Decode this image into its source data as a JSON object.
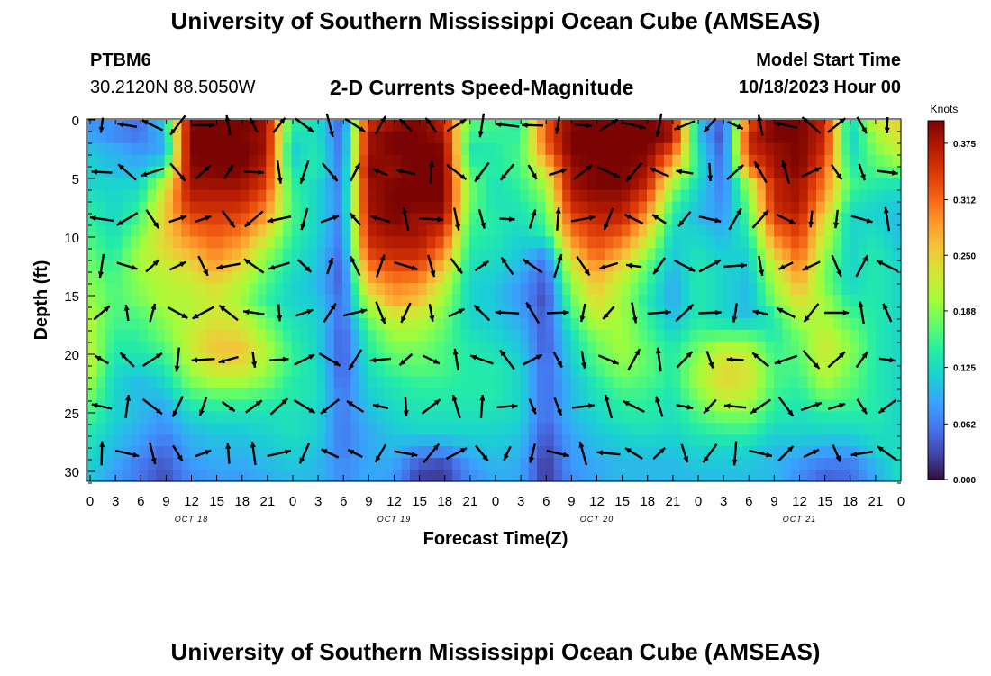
{
  "header": {
    "title": "University of Southern Mississippi Ocean Cube (AMSEAS)",
    "station": "PTBM6",
    "coords": "30.2120N  88.5050W",
    "chart_title": "2-D Currents Speed-Magnitude",
    "model_label": "Model Start Time",
    "model_date": "10/18/2023 Hour 00"
  },
  "footer": {
    "title": "University of Southern Mississippi Ocean Cube (AMSEAS)"
  },
  "chart_data": {
    "type": "heatmap",
    "title": "2-D Currents Speed-Magnitude",
    "xlabel": "Forecast Time(Z)",
    "ylabel": "Depth (ft)",
    "x_tick_labels": [
      "0",
      "3",
      "6",
      "9",
      "12",
      "15",
      "18",
      "21",
      "0",
      "3",
      "6",
      "9",
      "12",
      "15",
      "18",
      "21",
      "0",
      "3",
      "6",
      "9",
      "12",
      "15",
      "18",
      "21",
      "0",
      "3",
      "6",
      "9",
      "12",
      "15",
      "18",
      "21",
      "0"
    ],
    "date_labels": [
      {
        "label": "OCT 18",
        "hour": 12
      },
      {
        "label": "OCT 19",
        "hour": 36
      },
      {
        "label": "OCT 20",
        "hour": 60
      },
      {
        "label": "OCT 21",
        "hour": 84
      }
    ],
    "x_range_hours": [
      0,
      96
    ],
    "y_range_ft": [
      0,
      31
    ],
    "y_ticks": [
      0,
      5,
      10,
      15,
      20,
      25,
      30
    ],
    "colorbar": {
      "label": "Knots",
      "range": [
        0,
        0.4
      ],
      "ticks": [
        "0.375",
        "0.312",
        "0.250",
        "0.188",
        "0.125",
        "0.062",
        "0.000"
      ]
    },
    "colors": [
      "#30123b",
      "#4145ab",
      "#4675ed",
      "#39a2fc",
      "#1bcfd4",
      "#24eca6",
      "#61fc6c",
      "#a4fc3b",
      "#d1e834",
      "#f3c63a",
      "#fe9b2d",
      "#f36315",
      "#d93806",
      "#b11901",
      "#7a0403"
    ],
    "speed_knots": [
      [
        0.07,
        0.08,
        0.05,
        0.12,
        0.39,
        0.41,
        0.41,
        0.38,
        0.15,
        0.13,
        0.04,
        0.34,
        0.38,
        0.4,
        0.36,
        0.17,
        0.16,
        0.14,
        0.32,
        0.39,
        0.41,
        0.4,
        0.4,
        0.37,
        0.12,
        0.04,
        0.32,
        0.4,
        0.4,
        0.36,
        0.12,
        0.23,
        0.25
      ],
      [
        0.09,
        0.07,
        0.06,
        0.1,
        0.4,
        0.41,
        0.4,
        0.38,
        0.13,
        0.13,
        0.05,
        0.38,
        0.4,
        0.4,
        0.38,
        0.15,
        0.15,
        0.15,
        0.32,
        0.4,
        0.41,
        0.41,
        0.41,
        0.38,
        0.11,
        0.03,
        0.36,
        0.4,
        0.4,
        0.36,
        0.11,
        0.2,
        0.24
      ],
      [
        0.11,
        0.1,
        0.08,
        0.09,
        0.4,
        0.42,
        0.41,
        0.38,
        0.11,
        0.14,
        0.05,
        0.38,
        0.4,
        0.41,
        0.4,
        0.13,
        0.14,
        0.16,
        0.3,
        0.4,
        0.41,
        0.41,
        0.4,
        0.32,
        0.13,
        0.04,
        0.35,
        0.38,
        0.4,
        0.35,
        0.12,
        0.18,
        0.22
      ],
      [
        0.12,
        0.1,
        0.1,
        0.15,
        0.39,
        0.4,
        0.4,
        0.36,
        0.13,
        0.14,
        0.06,
        0.4,
        0.38,
        0.41,
        0.4,
        0.16,
        0.14,
        0.16,
        0.24,
        0.38,
        0.4,
        0.4,
        0.38,
        0.26,
        0.14,
        0.05,
        0.3,
        0.38,
        0.4,
        0.32,
        0.14,
        0.16,
        0.18
      ],
      [
        0.12,
        0.12,
        0.12,
        0.22,
        0.38,
        0.38,
        0.38,
        0.34,
        0.15,
        0.12,
        0.06,
        0.38,
        0.4,
        0.4,
        0.4,
        0.18,
        0.13,
        0.15,
        0.2,
        0.38,
        0.4,
        0.4,
        0.36,
        0.2,
        0.12,
        0.06,
        0.2,
        0.36,
        0.38,
        0.3,
        0.16,
        0.14,
        0.13
      ],
      [
        0.14,
        0.12,
        0.14,
        0.25,
        0.36,
        0.36,
        0.36,
        0.31,
        0.16,
        0.12,
        0.07,
        0.38,
        0.4,
        0.4,
        0.4,
        0.18,
        0.13,
        0.14,
        0.18,
        0.36,
        0.38,
        0.38,
        0.32,
        0.16,
        0.11,
        0.07,
        0.18,
        0.36,
        0.38,
        0.28,
        0.14,
        0.12,
        0.11
      ],
      [
        0.15,
        0.12,
        0.16,
        0.25,
        0.33,
        0.34,
        0.33,
        0.28,
        0.16,
        0.12,
        0.06,
        0.37,
        0.4,
        0.38,
        0.38,
        0.16,
        0.14,
        0.13,
        0.16,
        0.33,
        0.36,
        0.36,
        0.28,
        0.14,
        0.1,
        0.08,
        0.16,
        0.34,
        0.36,
        0.24,
        0.12,
        0.12,
        0.1
      ],
      [
        0.16,
        0.13,
        0.18,
        0.25,
        0.3,
        0.32,
        0.3,
        0.24,
        0.15,
        0.12,
        0.06,
        0.36,
        0.38,
        0.38,
        0.34,
        0.15,
        0.14,
        0.12,
        0.14,
        0.3,
        0.34,
        0.32,
        0.24,
        0.12,
        0.12,
        0.1,
        0.14,
        0.3,
        0.34,
        0.22,
        0.12,
        0.13,
        0.1
      ],
      [
        0.17,
        0.14,
        0.2,
        0.24,
        0.27,
        0.3,
        0.27,
        0.2,
        0.14,
        0.11,
        0.05,
        0.34,
        0.36,
        0.36,
        0.3,
        0.14,
        0.13,
        0.11,
        0.08,
        0.26,
        0.32,
        0.28,
        0.2,
        0.11,
        0.13,
        0.11,
        0.12,
        0.26,
        0.32,
        0.2,
        0.12,
        0.14,
        0.11
      ],
      [
        0.18,
        0.15,
        0.2,
        0.22,
        0.24,
        0.28,
        0.24,
        0.18,
        0.13,
        0.11,
        0.04,
        0.3,
        0.33,
        0.33,
        0.26,
        0.13,
        0.12,
        0.1,
        0.05,
        0.22,
        0.29,
        0.24,
        0.17,
        0.1,
        0.14,
        0.12,
        0.11,
        0.22,
        0.3,
        0.18,
        0.12,
        0.14,
        0.12
      ],
      [
        0.19,
        0.16,
        0.19,
        0.21,
        0.22,
        0.24,
        0.21,
        0.16,
        0.12,
        0.1,
        0.04,
        0.26,
        0.3,
        0.29,
        0.22,
        0.12,
        0.11,
        0.08,
        0.04,
        0.19,
        0.26,
        0.21,
        0.15,
        0.09,
        0.14,
        0.12,
        0.1,
        0.2,
        0.27,
        0.18,
        0.12,
        0.14,
        0.12
      ],
      [
        0.2,
        0.16,
        0.18,
        0.21,
        0.21,
        0.23,
        0.2,
        0.15,
        0.12,
        0.11,
        0.05,
        0.21,
        0.28,
        0.26,
        0.2,
        0.12,
        0.11,
        0.08,
        0.03,
        0.17,
        0.24,
        0.2,
        0.14,
        0.09,
        0.14,
        0.12,
        0.1,
        0.18,
        0.24,
        0.2,
        0.14,
        0.14,
        0.12
      ],
      [
        0.21,
        0.16,
        0.16,
        0.19,
        0.21,
        0.23,
        0.22,
        0.17,
        0.13,
        0.12,
        0.05,
        0.18,
        0.22,
        0.22,
        0.18,
        0.12,
        0.11,
        0.09,
        0.04,
        0.15,
        0.22,
        0.2,
        0.15,
        0.1,
        0.14,
        0.12,
        0.1,
        0.14,
        0.21,
        0.2,
        0.16,
        0.14,
        0.12
      ],
      [
        0.21,
        0.15,
        0.15,
        0.18,
        0.22,
        0.25,
        0.24,
        0.19,
        0.14,
        0.12,
        0.04,
        0.15,
        0.2,
        0.2,
        0.17,
        0.13,
        0.12,
        0.1,
        0.04,
        0.13,
        0.19,
        0.2,
        0.16,
        0.12,
        0.16,
        0.16,
        0.16,
        0.14,
        0.18,
        0.22,
        0.18,
        0.14,
        0.12
      ],
      [
        0.22,
        0.14,
        0.14,
        0.16,
        0.22,
        0.26,
        0.26,
        0.21,
        0.15,
        0.12,
        0.04,
        0.14,
        0.18,
        0.18,
        0.16,
        0.14,
        0.13,
        0.11,
        0.04,
        0.12,
        0.17,
        0.2,
        0.17,
        0.14,
        0.18,
        0.22,
        0.21,
        0.15,
        0.17,
        0.23,
        0.19,
        0.14,
        0.12
      ],
      [
        0.22,
        0.13,
        0.12,
        0.14,
        0.2,
        0.24,
        0.24,
        0.2,
        0.15,
        0.13,
        0.04,
        0.13,
        0.16,
        0.17,
        0.16,
        0.14,
        0.14,
        0.12,
        0.05,
        0.11,
        0.16,
        0.19,
        0.17,
        0.14,
        0.2,
        0.24,
        0.23,
        0.16,
        0.16,
        0.22,
        0.18,
        0.14,
        0.12
      ],
      [
        0.2,
        0.12,
        0.1,
        0.12,
        0.18,
        0.2,
        0.2,
        0.18,
        0.14,
        0.13,
        0.05,
        0.12,
        0.14,
        0.15,
        0.15,
        0.14,
        0.14,
        0.12,
        0.05,
        0.1,
        0.14,
        0.17,
        0.16,
        0.14,
        0.2,
        0.24,
        0.23,
        0.16,
        0.15,
        0.2,
        0.17,
        0.14,
        0.12
      ],
      [
        0.18,
        0.12,
        0.1,
        0.1,
        0.15,
        0.16,
        0.16,
        0.15,
        0.14,
        0.13,
        0.06,
        0.11,
        0.13,
        0.14,
        0.14,
        0.14,
        0.14,
        0.12,
        0.05,
        0.1,
        0.13,
        0.15,
        0.15,
        0.13,
        0.18,
        0.22,
        0.21,
        0.15,
        0.14,
        0.17,
        0.16,
        0.14,
        0.12
      ],
      [
        0.16,
        0.12,
        0.1,
        0.08,
        0.12,
        0.13,
        0.13,
        0.13,
        0.13,
        0.12,
        0.06,
        0.1,
        0.12,
        0.13,
        0.13,
        0.13,
        0.13,
        0.12,
        0.05,
        0.1,
        0.12,
        0.14,
        0.14,
        0.13,
        0.16,
        0.18,
        0.18,
        0.14,
        0.13,
        0.14,
        0.14,
        0.14,
        0.12
      ],
      [
        0.14,
        0.11,
        0.09,
        0.07,
        0.1,
        0.11,
        0.11,
        0.12,
        0.13,
        0.12,
        0.06,
        0.09,
        0.11,
        0.12,
        0.12,
        0.12,
        0.12,
        0.11,
        0.04,
        0.09,
        0.11,
        0.12,
        0.13,
        0.12,
        0.14,
        0.15,
        0.15,
        0.12,
        0.12,
        0.12,
        0.12,
        0.13,
        0.12
      ],
      [
        0.13,
        0.1,
        0.08,
        0.05,
        0.09,
        0.1,
        0.1,
        0.11,
        0.12,
        0.11,
        0.06,
        0.09,
        0.1,
        0.08,
        0.08,
        0.1,
        0.11,
        0.1,
        0.03,
        0.08,
        0.1,
        0.11,
        0.11,
        0.11,
        0.12,
        0.12,
        0.12,
        0.1,
        0.1,
        0.09,
        0.09,
        0.12,
        0.13
      ],
      [
        0.12,
        0.09,
        0.06,
        0.04,
        0.08,
        0.09,
        0.09,
        0.1,
        0.11,
        0.1,
        0.07,
        0.09,
        0.09,
        0.04,
        0.03,
        0.08,
        0.1,
        0.09,
        0.02,
        0.08,
        0.09,
        0.1,
        0.1,
        0.1,
        0.11,
        0.11,
        0.11,
        0.1,
        0.08,
        0.06,
        0.06,
        0.1,
        0.13
      ],
      [
        0.11,
        0.08,
        0.06,
        0.03,
        0.07,
        0.08,
        0.08,
        0.09,
        0.1,
        0.1,
        0.07,
        0.09,
        0.08,
        0.02,
        0.02,
        0.07,
        0.09,
        0.09,
        0.02,
        0.07,
        0.09,
        0.1,
        0.1,
        0.1,
        0.1,
        0.1,
        0.1,
        0.1,
        0.07,
        0.04,
        0.05,
        0.09,
        0.13
      ]
    ]
  }
}
